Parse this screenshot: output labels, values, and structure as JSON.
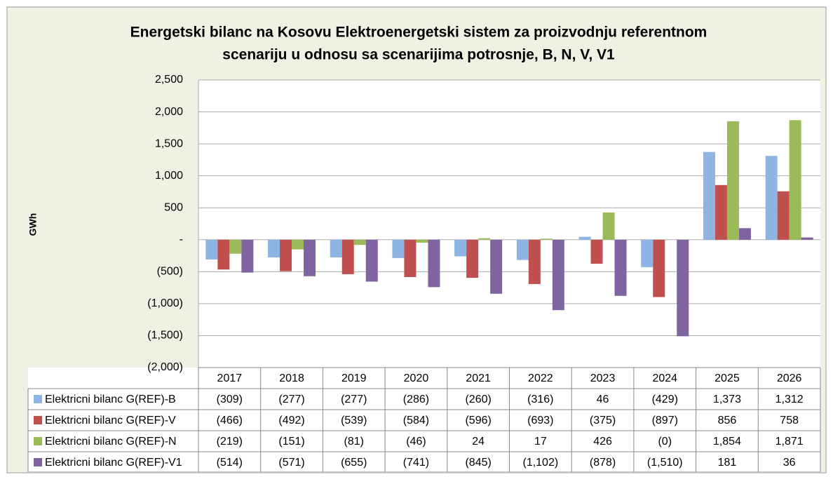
{
  "chart_data": {
    "type": "bar",
    "title": [
      "Energetski bilanc na Kosovu Elektroenergetski sistem za proizvodnju referentnom",
      "scenariju u odnosu sa scenarijima potrosnje, B, N, V, V1"
    ],
    "y_label": "GWh",
    "categories": [
      "2017",
      "2018",
      "2019",
      "2020",
      "2021",
      "2022",
      "2023",
      "2024",
      "2025",
      "2026"
    ],
    "series": [
      {
        "name": "Elektricni bilanc G(REF)-B",
        "color": "#8db4e2",
        "values": [
          -309,
          -277,
          -277,
          -286,
          -260,
          -316,
          46,
          -429,
          1373,
          1312
        ],
        "value_labels": [
          "(309)",
          "(277)",
          "(277)",
          "(286)",
          "(260)",
          "(316)",
          "46",
          "(429)",
          "1,373",
          "1,312"
        ]
      },
      {
        "name": "Elektricni bilanc G(REF)-V",
        "color": "#c0504d",
        "values": [
          -466,
          -492,
          -539,
          -584,
          -596,
          -693,
          -375,
          -897,
          856,
          758
        ],
        "value_labels": [
          "(466)",
          "(492)",
          "(539)",
          "(584)",
          "(596)",
          "(693)",
          "(375)",
          "(897)",
          "856",
          "758"
        ]
      },
      {
        "name": "Elektricni bilanc G(REF)-N",
        "color": "#9bbb59",
        "values": [
          -219,
          -151,
          -81,
          -46,
          24,
          17,
          426,
          0,
          1854,
          1871
        ],
        "value_labels": [
          "(219)",
          "(151)",
          "(81)",
          "(46)",
          "24",
          "17",
          "426",
          "(0)",
          "1,854",
          "1,871"
        ]
      },
      {
        "name": "Elektricni bilanc G(REF)-V1",
        "color": "#8064a2",
        "values": [
          -514,
          -571,
          -655,
          -741,
          -845,
          -1102,
          -878,
          -1510,
          181,
          36
        ],
        "value_labels": [
          "(514)",
          "(571)",
          "(655)",
          "(741)",
          "(845)",
          "(1,102)",
          "(878)",
          "(1,510)",
          "181",
          "36"
        ]
      }
    ],
    "ylim": [
      -2000,
      2500
    ],
    "yticks": [
      {
        "value": -2000,
        "label": "(2,000)"
      },
      {
        "value": -1500,
        "label": "(1,500)"
      },
      {
        "value": -1000,
        "label": "(1,000)"
      },
      {
        "value": -500,
        "label": "(500)"
      },
      {
        "value": 0,
        "label": "-"
      },
      500,
      {
        "value": 1000,
        "label": "1,000"
      },
      {
        "value": 1500,
        "label": "1,500"
      },
      {
        "value": 2000,
        "label": "2,000"
      },
      {
        "value": 2500,
        "label": "2,500"
      }
    ],
    "grid": true
  }
}
